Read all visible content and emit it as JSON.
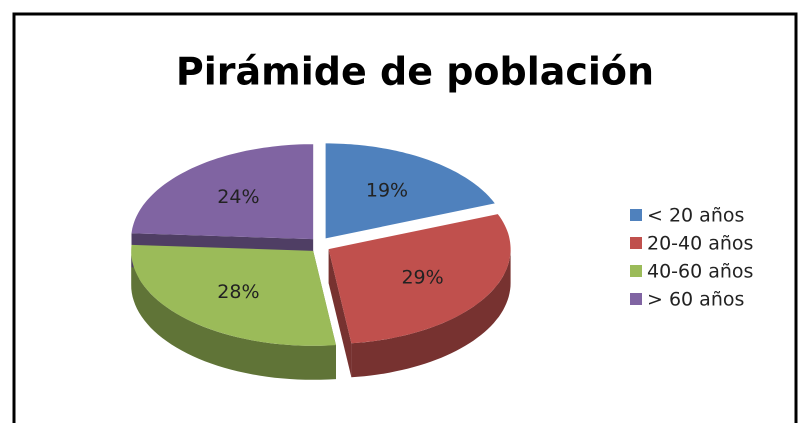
{
  "chart_data": {
    "type": "pie",
    "title": "Pirámide de población",
    "categories": [
      "< 20 años",
      "20-40 años",
      "40-60 años",
      "> 60 años"
    ],
    "values": [
      19,
      29,
      28,
      24
    ],
    "value_labels": [
      "19%",
      "29%",
      "28%",
      "24%"
    ],
    "colors": [
      "#4f81bd",
      "#c0504d",
      "#9bbb59",
      "#8064a2"
    ],
    "legend": "right"
  }
}
